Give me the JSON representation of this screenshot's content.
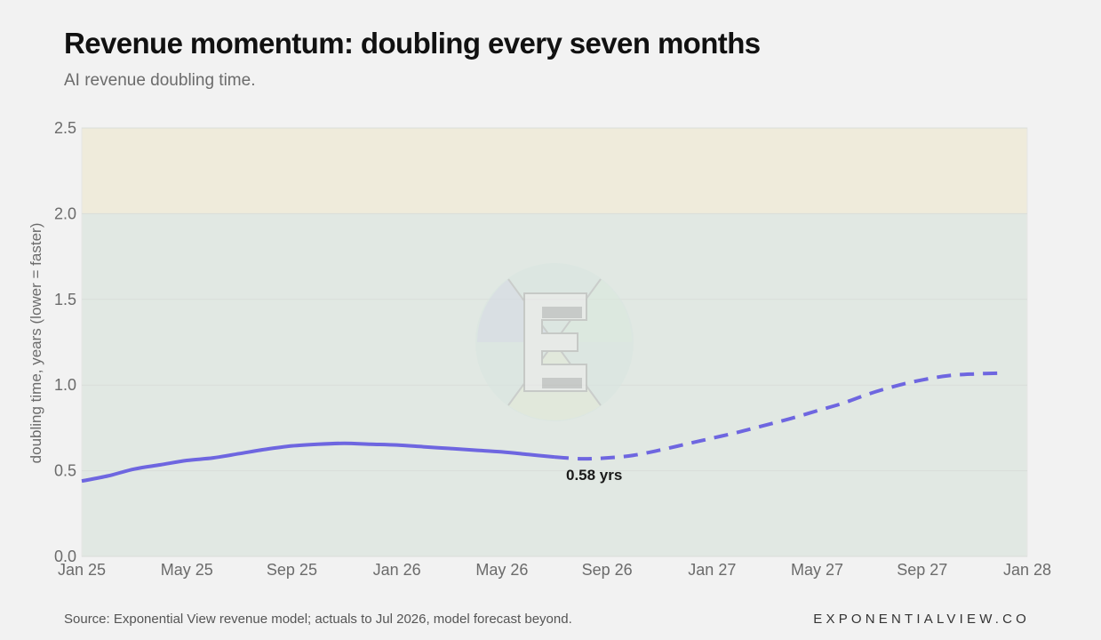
{
  "header": {
    "title": "Revenue momentum: doubling every seven months",
    "subtitle": "AI revenue doubling time."
  },
  "footer": {
    "source": "Source: Exponential View revenue model; actuals to Jul 2026, model forecast beyond.",
    "brand": "EXPONENTIALVIEW.CO"
  },
  "chart_data": {
    "type": "line",
    "ylabel": "doubling time, years (lower = faster)",
    "ylim": [
      0,
      2.5
    ],
    "yticks": [
      0.0,
      0.5,
      1.0,
      1.5,
      2.0,
      2.5
    ],
    "ytick_labels": [
      "0.0",
      "0.5",
      "1.0",
      "1.5",
      "2.0",
      "2.5"
    ],
    "xlim": [
      "2025-01",
      "2028-01"
    ],
    "xticks": [
      "2025-01",
      "2025-05",
      "2025-09",
      "2026-01",
      "2026-05",
      "2026-09",
      "2027-01",
      "2027-05",
      "2027-09",
      "2028-01"
    ],
    "xtick_labels": [
      "Jan 25",
      "May 25",
      "Sep 25",
      "Jan 26",
      "May 26",
      "Sep 26",
      "Jan 27",
      "May 27",
      "Sep 27",
      "Jan 28"
    ],
    "bands": [
      {
        "from": 0,
        "to": 2.0,
        "color": "#e1e8e3"
      },
      {
        "from": 2.0,
        "to": 2.5,
        "color": "#efebdb"
      }
    ],
    "grid": true,
    "series": [
      {
        "style": "solid",
        "color": "#6e66e0",
        "points": [
          [
            "2025-01",
            0.44
          ],
          [
            "2025-02",
            0.47
          ],
          [
            "2025-03",
            0.51
          ],
          [
            "2025-04",
            0.535
          ],
          [
            "2025-05",
            0.56
          ],
          [
            "2025-06",
            0.575
          ],
          [
            "2025-07",
            0.6
          ],
          [
            "2025-08",
            0.625
          ],
          [
            "2025-09",
            0.645
          ],
          [
            "2025-10",
            0.655
          ],
          [
            "2025-11",
            0.66
          ],
          [
            "2025-12",
            0.655
          ],
          [
            "2026-01",
            0.65
          ],
          [
            "2026-02",
            0.64
          ],
          [
            "2026-03",
            0.63
          ],
          [
            "2026-04",
            0.62
          ],
          [
            "2026-05",
            0.61
          ],
          [
            "2026-06",
            0.595
          ],
          [
            "2026-07",
            0.58
          ]
        ]
      },
      {
        "style": "dashed",
        "color": "#6e66e0",
        "points": [
          [
            "2026-07",
            0.58
          ],
          [
            "2026-08",
            0.57
          ],
          [
            "2026-09",
            0.575
          ],
          [
            "2026-10",
            0.59
          ],
          [
            "2026-11",
            0.62
          ],
          [
            "2026-12",
            0.655
          ],
          [
            "2027-01",
            0.69
          ],
          [
            "2027-02",
            0.725
          ],
          [
            "2027-03",
            0.765
          ],
          [
            "2027-04",
            0.805
          ],
          [
            "2027-05",
            0.85
          ],
          [
            "2027-06",
            0.895
          ],
          [
            "2027-07",
            0.95
          ],
          [
            "2027-08",
            0.995
          ],
          [
            "2027-09",
            1.03
          ],
          [
            "2027-10",
            1.055
          ],
          [
            "2027-11",
            1.065
          ],
          [
            "2027-12",
            1.07
          ]
        ]
      }
    ],
    "annotations": [
      {
        "text": "0.58 yrs",
        "x": "2026-07",
        "y": 0.58
      }
    ]
  }
}
